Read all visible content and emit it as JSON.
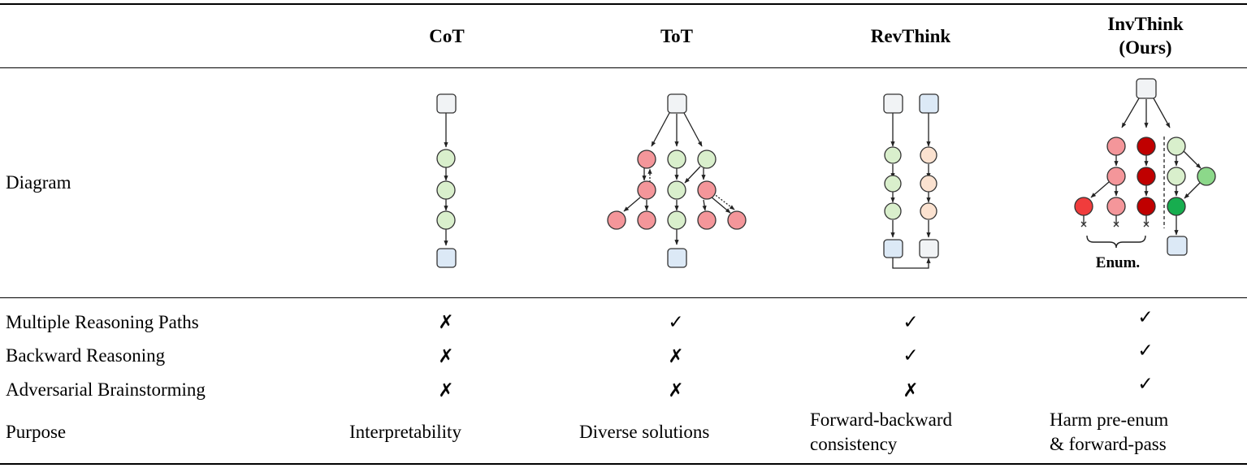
{
  "table": {
    "columns": [
      "CoT",
      "ToT",
      "RevThink",
      "InvThink\n(Ours)"
    ],
    "rows": [
      {
        "label": "Diagram"
      },
      {
        "label": "Multiple Reasoning Paths",
        "values": [
          "✗",
          "✓",
          "✓",
          "✓"
        ]
      },
      {
        "label": "Backward Reasoning",
        "values": [
          "✗",
          "✗",
          "✓",
          "✓"
        ]
      },
      {
        "label": "Adversarial Brainstorming",
        "values": [
          "✗",
          "✗",
          "✗",
          "✓"
        ]
      },
      {
        "label": "Purpose",
        "values": [
          "Interpretability",
          "Diverse solutions",
          "Forward-backward consistency",
          "Harm pre-enum & forward-pass"
        ]
      }
    ]
  },
  "header": {
    "cot": "CoT",
    "tot": "ToT",
    "revthink": "RevThink",
    "invthink_line1": "InvThink",
    "invthink_line2": "(Ours)"
  },
  "row_labels": {
    "diagram": "Diagram",
    "multiple_paths": "Multiple Reasoning Paths",
    "backward": "Backward Reasoning",
    "adversarial": "Adversarial Brainstorming",
    "purpose": "Purpose"
  },
  "marks": {
    "multiple_paths": {
      "cot": "✗",
      "tot": "✓",
      "revthink": "✓",
      "invthink": "✓"
    },
    "backward": {
      "cot": "✗",
      "tot": "✗",
      "revthink": "✓",
      "invthink": "✓"
    },
    "adversarial": {
      "cot": "✗",
      "tot": "✗",
      "revthink": "✗",
      "invthink": "✓"
    }
  },
  "purpose": {
    "cot": "Interpretability",
    "tot": "Diverse solutions",
    "revthink_line1": "Forward-backward",
    "revthink_line2": "consistency",
    "invthink_line1": "Harm pre-enum",
    "invthink_line2": "& forward-pass"
  },
  "diagram": {
    "enum_label": "Enum."
  },
  "colors": {
    "box_input": "#f1f3f5",
    "box_output": "#dce9f6",
    "node_green": "#d9efcc",
    "node_red": "#f4969a",
    "node_peach": "#fbe2d0",
    "node_bright_red": "#f03c3c",
    "node_dark_red": "#c00000",
    "node_dark_green": "#17ad4f",
    "stroke": "#333333"
  }
}
